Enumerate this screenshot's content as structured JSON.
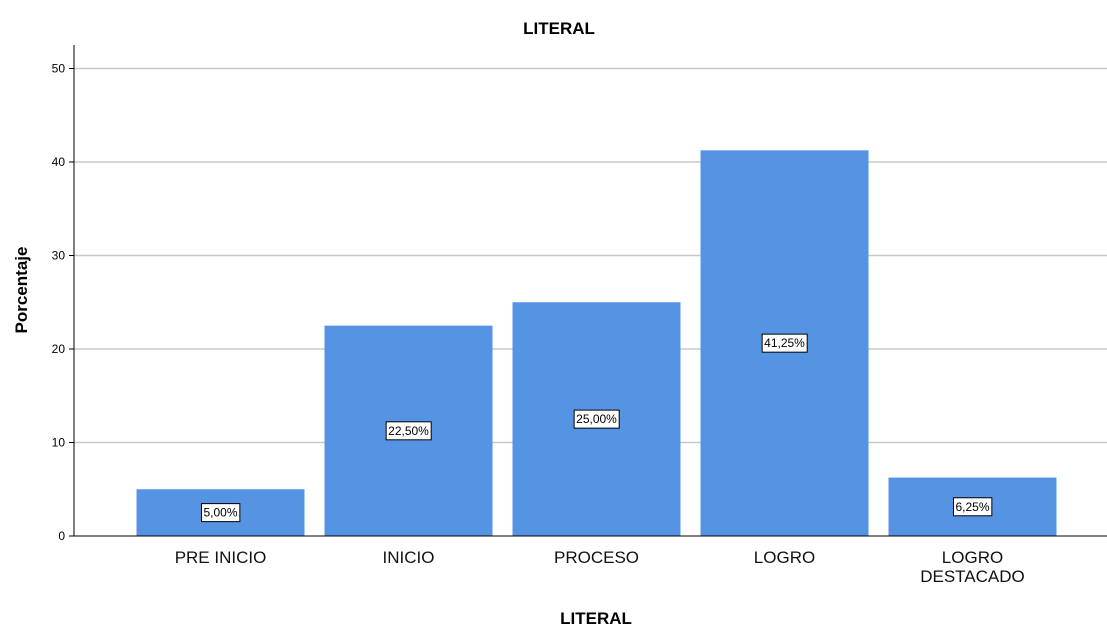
{
  "chart_data": {
    "type": "bar",
    "title": "LITERAL",
    "xlabel": "LITERAL",
    "ylabel": "Porcentaje",
    "categories": [
      "PRE INICIO",
      "INICIO",
      "PROCESO",
      "LOGRO",
      "LOGRO\nDESTACADO"
    ],
    "values": [
      5.0,
      22.5,
      25.0,
      41.25,
      6.25
    ],
    "data_labels": [
      "5,00%",
      "22,50%",
      "25,00%",
      "41,25%",
      "6,25%"
    ],
    "ylim": [
      0,
      52.5
    ],
    "yticks": [
      0,
      10,
      20,
      30,
      40,
      50
    ],
    "grid": true,
    "colors": {
      "bar": "#5594e3",
      "grid": "#c8c8c8",
      "axis": "#000000"
    }
  }
}
